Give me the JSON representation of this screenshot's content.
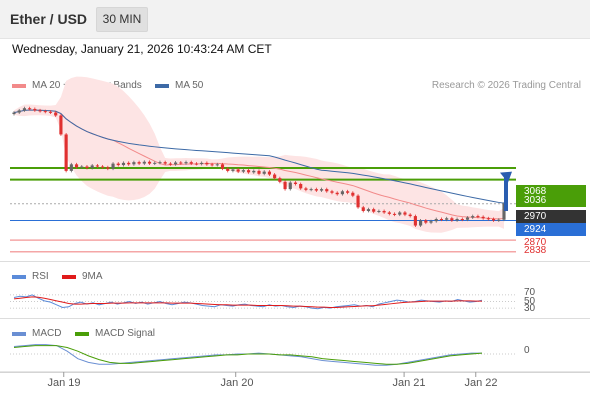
{
  "header": {
    "title": "Ether / USD",
    "timeframe_label": "30 MIN"
  },
  "timestamp": "Wednesday, January 21, 2026 10:43:24 AM CET",
  "legend": {
    "ma20_label": "MA 20 + Bollinger Bands",
    "ma50_label": "MA 50",
    "rsi_label": "RSI",
    "rsi_ma_label": "9MA",
    "macd_label": "MACD",
    "macd_signal_label": "MACD Signal",
    "credit": "Research © 2026 Trading Central"
  },
  "colors": {
    "ma20": "#f28a8a",
    "ma50": "#3d6aa6",
    "bollinger_fill": "#fde4e4",
    "resistance": "#4a9e08",
    "support": "#2a6fd6",
    "pivot_red": "#e36b6b",
    "candle_up": "#666666",
    "candle_down": "#e03030",
    "current_price_bg": "#333333",
    "rsi": "#5b8bd9",
    "rsi_ma": "#e01b1b",
    "macd": "#6a8fd3",
    "macd_signal": "#4a9e08",
    "arrow": "#2a5db0"
  },
  "chart_data": [
    {
      "type": "candlestick",
      "title": "Ether / USD",
      "x_ticks": [
        "Jan 19",
        "Jan 20",
        "Jan 21",
        "Jan 22"
      ],
      "x_tick_positions": [
        10,
        58,
        105,
        125
      ],
      "x_range": [
        -5,
        134
      ],
      "ylim": [
        2810,
        3260
      ],
      "closes": [
        3220,
        3226,
        3232,
        3230,
        3226,
        3224,
        3222,
        3220,
        3212,
        3160,
        3060,
        3078,
        3070,
        3072,
        3068,
        3075,
        3072,
        3070,
        3066,
        3080,
        3076,
        3082,
        3078,
        3084,
        3080,
        3085,
        3080,
        3082,
        3084,
        3080,
        3078,
        3083,
        3081,
        3084,
        3080,
        3079,
        3082,
        3078,
        3076,
        3078,
        3066,
        3060,
        3064,
        3058,
        3062,
        3056,
        3060,
        3052,
        3058,
        3050,
        3040,
        3030,
        3010,
        3028,
        3024,
        3012,
        3008,
        3010,
        3006,
        3010,
        3004,
        3000,
        2996,
        3004,
        3000,
        2992,
        2960,
        2950,
        2955,
        2948,
        2950,
        2946,
        2942,
        2940,
        2946,
        2940,
        2936,
        2910,
        2924,
        2918,
        2922,
        2928,
        2926,
        2930,
        2924,
        2928,
        2926,
        2932,
        2936,
        2934,
        2930,
        2928,
        2924,
        2926,
        2970
      ],
      "levels": [
        {
          "label": "3068",
          "value": 3068,
          "kind": "resistance"
        },
        {
          "label": "3036",
          "value": 3036,
          "kind": "resistance"
        },
        {
          "label": "2970",
          "value": 2970,
          "kind": "current_price"
        },
        {
          "label": "2924",
          "value": 2924,
          "kind": "pivot"
        },
        {
          "label": "2870",
          "value": 2870,
          "kind": "support"
        },
        {
          "label": "2838",
          "value": 2838,
          "kind": "support"
        }
      ],
      "overlays": [
        "MA 20 + Bollinger Bands",
        "MA 50"
      ]
    },
    {
      "type": "line",
      "title": "RSI",
      "levels": [
        {
          "label": "70",
          "value": 70
        },
        {
          "label": "50",
          "value": 50
        },
        {
          "label": "30",
          "value": 30
        }
      ],
      "ylim": [
        0,
        100
      ],
      "series": [
        {
          "name": "RSI",
          "values": [
            62,
            66,
            64,
            70,
            60,
            52,
            48,
            40,
            32,
            34,
            44,
            48,
            42,
            46,
            40,
            44,
            48,
            42,
            46,
            50,
            44,
            48,
            42,
            46,
            50,
            44,
            40,
            44,
            48,
            46,
            42,
            38,
            36,
            34,
            40,
            38,
            36,
            40,
            42,
            38,
            36,
            34,
            40,
            36,
            38,
            34,
            32,
            36,
            34,
            30,
            28,
            32,
            30,
            34,
            36,
            38,
            40,
            36,
            38,
            34,
            42,
            46,
            50,
            54,
            52,
            48,
            50,
            54,
            52,
            50,
            48,
            52,
            50,
            56,
            52,
            48,
            50,
            54
          ]
        },
        {
          "name": "9MA",
          "values": [
            58,
            60,
            62,
            64,
            63,
            60,
            56,
            52,
            48,
            44,
            42,
            42,
            43,
            44,
            44,
            44,
            45,
            45,
            45,
            46,
            46,
            46,
            46,
            46,
            46,
            46,
            45,
            45,
            45,
            45,
            44,
            43,
            42,
            41,
            40,
            40,
            39,
            39,
            39,
            39,
            38,
            38,
            38,
            38,
            38,
            37,
            36,
            36,
            35,
            34,
            33,
            33,
            32,
            32,
            33,
            34,
            35,
            36,
            37,
            37,
            39,
            41,
            43,
            45,
            47,
            48,
            49,
            50,
            51,
            51,
            51,
            51,
            51,
            52,
            52,
            52,
            51,
            51
          ]
        }
      ]
    },
    {
      "type": "line",
      "title": "MACD",
      "levels": [
        {
          "label": "0",
          "value": 0
        }
      ],
      "ylim": [
        -15,
        15
      ],
      "series": [
        {
          "name": "MACD",
          "values": [
            8,
            9,
            10,
            10,
            9,
            3,
            -5,
            -9,
            -11,
            -11,
            -10,
            -9,
            -8,
            -7,
            -6,
            -5,
            -4,
            -3,
            -2,
            -1,
            -1,
            0,
            0,
            1,
            0,
            -1,
            -2,
            -3,
            -5,
            -7,
            -8,
            -9,
            -10,
            -11,
            -12,
            -12,
            -11,
            -9,
            -7,
            -5,
            -3,
            -1,
            0,
            1,
            1
          ]
        },
        {
          "name": "MACD Signal",
          "values": [
            7,
            8,
            9,
            9,
            9,
            7,
            3,
            -2,
            -6,
            -9,
            -10,
            -10,
            -9,
            -8,
            -7,
            -6,
            -5,
            -4,
            -3,
            -2,
            -1,
            -1,
            0,
            0,
            0,
            -1,
            -1,
            -2,
            -3,
            -5,
            -6,
            -7,
            -8,
            -9,
            -10,
            -11,
            -11,
            -10,
            -8,
            -6,
            -4,
            -2,
            -1,
            0,
            1
          ]
        }
      ]
    }
  ]
}
